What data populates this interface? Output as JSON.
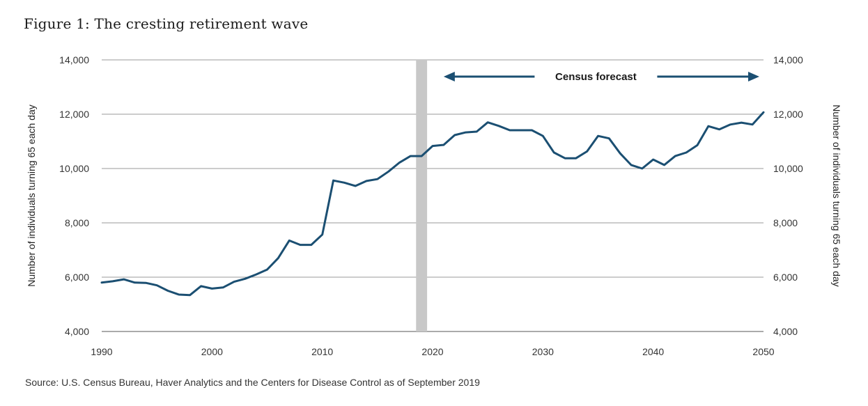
{
  "title": "Figure 1: The cresting retirement wave",
  "source": "Source: U.S. Census Bureau, Haver Analytics and the Centers for Disease Control as of September 2019",
  "chart_data": {
    "type": "line",
    "ylabel_left": "Number of individuals turning 65 each day",
    "ylabel_right": "Number of individuals turning 65 each day",
    "xlim": [
      1990,
      2050
    ],
    "ylim": [
      4000,
      14000
    ],
    "x_ticks": [
      "1990",
      "2000",
      "2010",
      "2020",
      "2030",
      "2040",
      "2050"
    ],
    "y_ticks": [
      "4,000",
      "6,000",
      "8,000",
      "10,000",
      "12,000",
      "14,000"
    ],
    "y_tick_values": [
      4000,
      6000,
      8000,
      10000,
      12000,
      14000
    ],
    "x_tick_values": [
      1990,
      2000,
      2010,
      2020,
      2030,
      2040,
      2050
    ],
    "grid": "horizontal",
    "highlight_band": [
      2018.5,
      2019.5
    ],
    "annotation": "Census forecast",
    "annotation_range": [
      2021,
      2050
    ],
    "line_color": "#1b4f72",
    "band_color": "#c8c8c8",
    "series": [
      {
        "x": [
          1990,
          1991,
          1992,
          1993,
          1994,
          1995,
          1996,
          1997,
          1998,
          1999,
          2000,
          2001,
          2002,
          2003,
          2004,
          2005,
          2006,
          2007,
          2008,
          2009,
          2010,
          2011,
          2012,
          2013,
          2014,
          2015,
          2016,
          2017,
          2018,
          2019,
          2020,
          2021,
          2022,
          2023,
          2024,
          2025,
          2026,
          2027,
          2028,
          2029,
          2030,
          2031,
          2032,
          2033,
          2034,
          2035,
          2036,
          2037,
          2038,
          2039,
          2040,
          2041,
          2042,
          2043,
          2044,
          2045,
          2046,
          2047,
          2048,
          2049,
          2050
        ],
        "values": [
          5800,
          5850,
          5920,
          5800,
          5790,
          5700,
          5500,
          5360,
          5340,
          5670,
          5580,
          5620,
          5830,
          5940,
          6100,
          6280,
          6700,
          7350,
          7190,
          7190,
          7570,
          9560,
          9480,
          9360,
          9540,
          9610,
          9890,
          10220,
          10460,
          10460,
          10830,
          10870,
          11230,
          11330,
          11360,
          11700,
          11570,
          11410,
          11410,
          11410,
          11200,
          10590,
          10380,
          10380,
          10630,
          11200,
          11110,
          10560,
          10130,
          10000,
          10330,
          10130,
          10460,
          10590,
          10860,
          11560,
          11440,
          11620,
          11690,
          11620,
          12070
        ]
      }
    ]
  }
}
